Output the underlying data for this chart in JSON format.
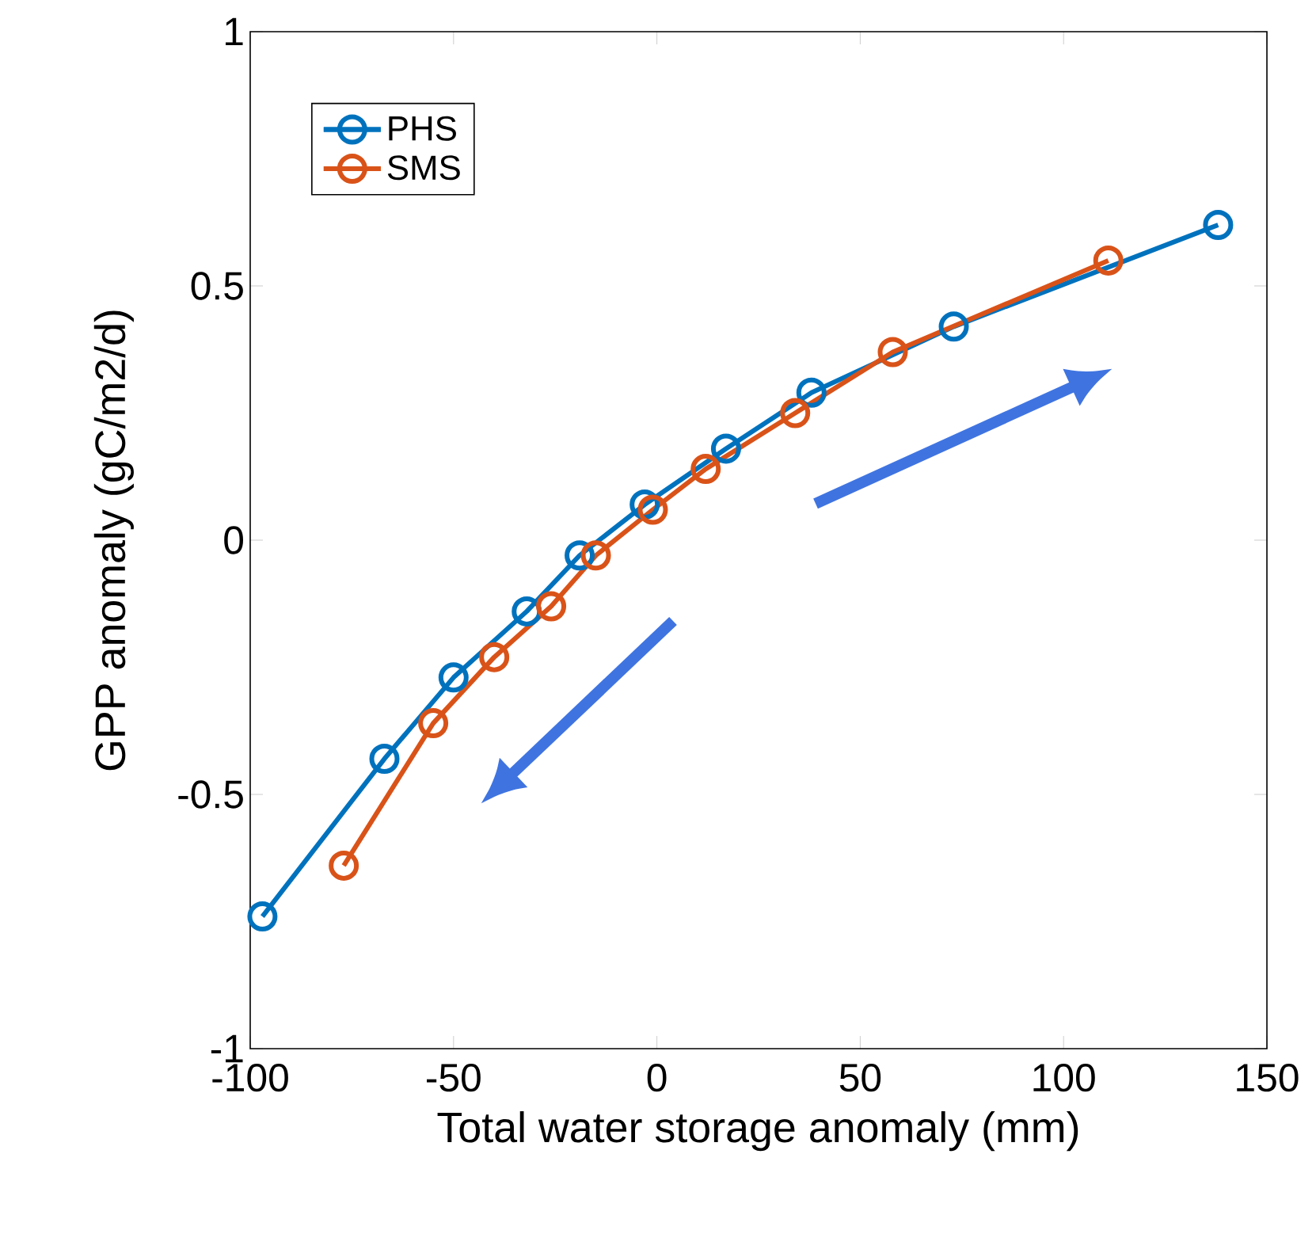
{
  "chart_data": {
    "type": "line",
    "xlabel": "Total water storage anomaly (mm)",
    "ylabel": "GPP anomaly (gC/m2/d)",
    "xlim": [
      -100,
      150
    ],
    "xticks": [
      -100,
      -50,
      0,
      50,
      100,
      150
    ],
    "ylim": [
      -1,
      1
    ],
    "yticks": [
      -1,
      -0.5,
      0,
      0.5,
      1
    ],
    "grid": false,
    "legend": "top left",
    "marker": "circle",
    "line_style": "solid",
    "series": [
      {
        "name": "PHS",
        "color": "#0072bd",
        "x": [
          -97,
          -67,
          -50,
          -32,
          -19,
          -3,
          17,
          38,
          73,
          138
        ],
        "values": [
          -0.74,
          -0.43,
          -0.27,
          -0.14,
          -0.03,
          0.07,
          0.18,
          0.29,
          0.42,
          0.62
        ]
      },
      {
        "name": "SMS",
        "color": "#d95319",
        "x": [
          -77,
          -55,
          -40,
          -26,
          -15,
          -1,
          12,
          34,
          58,
          111
        ],
        "values": [
          -0.64,
          -0.36,
          -0.23,
          -0.13,
          -0.03,
          0.06,
          0.14,
          0.25,
          0.37,
          0.55
        ]
      }
    ]
  }
}
